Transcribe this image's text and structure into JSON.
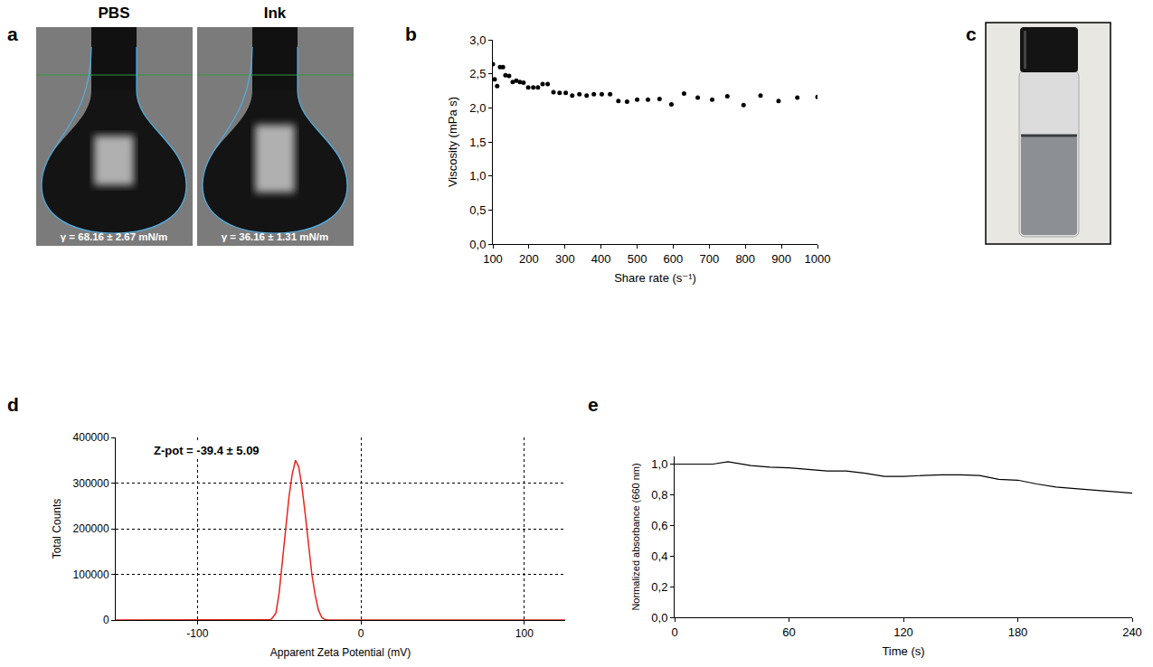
{
  "photo_panels": [
    {
      "panel": "a",
      "images": [
        {
          "title": "PBS",
          "caption": "γ = 68.16 ± 2.67 mN/m"
        },
        {
          "title": "Ink",
          "caption": "γ = 36.16 ± 1.31 mN/m"
        }
      ]
    },
    {
      "panel": "c"
    }
  ],
  "chart_data": [
    {
      "panel": "b",
      "type": "scatter",
      "marker": "circle",
      "color": "#000000",
      "x_label": "Share rate (s⁻¹)",
      "y_label": "Viscosity (mPa s)",
      "x": [
        100,
        105,
        112,
        120,
        128,
        135,
        145,
        155,
        165,
        175,
        185,
        198,
        212,
        225,
        238,
        252,
        268,
        285,
        302,
        320,
        340,
        360,
        380,
        402,
        425,
        448,
        472,
        500,
        530,
        562,
        595,
        630,
        668,
        708,
        750,
        795,
        842,
        892,
        944,
        1000
      ],
      "values": [
        2.64,
        2.42,
        2.32,
        2.6,
        2.6,
        2.48,
        2.47,
        2.38,
        2.4,
        2.38,
        2.37,
        2.3,
        2.3,
        2.3,
        2.35,
        2.35,
        2.23,
        2.22,
        2.22,
        2.18,
        2.2,
        2.18,
        2.2,
        2.2,
        2.2,
        2.1,
        2.09,
        2.12,
        2.12,
        2.13,
        2.05,
        2.21,
        2.15,
        2.12,
        2.17,
        2.04,
        2.18,
        2.1,
        2.15,
        2.16
      ],
      "xlim": [
        100,
        1000
      ],
      "xticks": [
        100,
        200,
        300,
        400,
        500,
        600,
        700,
        800,
        900,
        1000
      ],
      "ylim": [
        0,
        3
      ],
      "yticks": [
        {
          "value": 0,
          "label": "0,0"
        },
        {
          "value": 0.5,
          "label": "0,5"
        },
        {
          "value": 1,
          "label": "1,0"
        },
        {
          "value": 1.5,
          "label": "1,5"
        },
        {
          "value": 2,
          "label": "2,0"
        },
        {
          "value": 2.5,
          "label": "2,5"
        },
        {
          "value": 3,
          "label": "3,0"
        }
      ],
      "grid": false
    },
    {
      "panel": "d",
      "type": "line",
      "color": "#e8261c",
      "x_label": "Apparent Zeta Potential (mV)",
      "y_label": "Total Counts",
      "annotations": [
        "Z-pot = -39.4 ± 5.09"
      ],
      "x": [
        -150,
        -60,
        -55,
        -52,
        -50,
        -48,
        -46,
        -44,
        -42,
        -40,
        -38,
        -36,
        -34,
        -32,
        -30,
        -28,
        -26,
        -24,
        -22,
        -20,
        125
      ],
      "values": [
        0,
        0,
        1000,
        15000,
        60000,
        130000,
        200000,
        270000,
        320000,
        350000,
        335000,
        290000,
        230000,
        160000,
        100000,
        55000,
        22000,
        6000,
        1000,
        0,
        0
      ],
      "xlim": [
        -150,
        125
      ],
      "xticks": [
        -100,
        0,
        100
      ],
      "ylim": [
        0,
        400000
      ],
      "yticks": [
        0,
        100000,
        200000,
        300000,
        400000
      ],
      "grid": true
    },
    {
      "panel": "e",
      "type": "line",
      "color": "#000000",
      "x_label": "Time (s)",
      "y_label": "Normalized absorbance (660 nm)",
      "x": [
        0,
        10,
        20,
        28,
        40,
        50,
        60,
        70,
        80,
        90,
        100,
        110,
        120,
        130,
        140,
        150,
        160,
        170,
        180,
        190,
        200,
        210,
        220,
        230,
        240
      ],
      "values": [
        1.0,
        1.0,
        1.0,
        1.015,
        0.99,
        0.98,
        0.975,
        0.965,
        0.955,
        0.955,
        0.94,
        0.92,
        0.92,
        0.925,
        0.93,
        0.93,
        0.925,
        0.9,
        0.895,
        0.87,
        0.85,
        0.84,
        0.83,
        0.82,
        0.81
      ],
      "xlim": [
        0,
        240
      ],
      "xticks": [
        0,
        60,
        120,
        180,
        240
      ],
      "ylim": [
        0,
        1.05
      ],
      "yticks": [
        {
          "value": 0,
          "label": "0,0"
        },
        {
          "value": 0.2,
          "label": "0,2"
        },
        {
          "value": 0.4,
          "label": "0,4"
        },
        {
          "value": 0.6,
          "label": "0,6"
        },
        {
          "value": 0.8,
          "label": "0,8"
        },
        {
          "value": 1,
          "label": "1,0"
        }
      ],
      "grid": false
    }
  ]
}
